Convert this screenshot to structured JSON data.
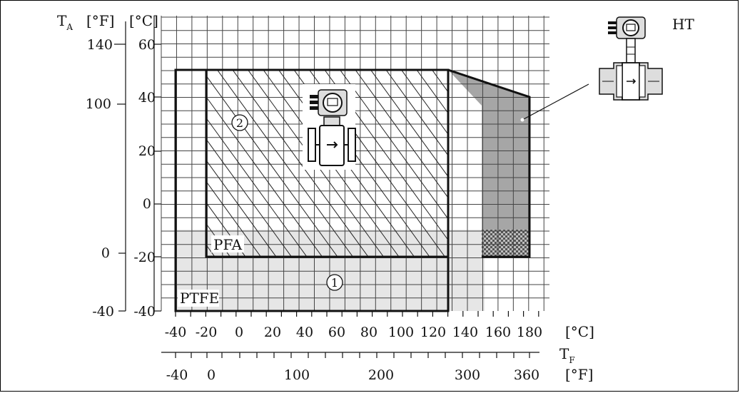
{
  "axes": {
    "ambient": {
      "symbol": "T",
      "subscript": "A",
      "unit_f": "[°F]",
      "unit_c": "[°C]",
      "ticks_c": [
        "60",
        "40",
        "20",
        "0",
        "-20",
        "-40"
      ],
      "ticks_f": [
        "140",
        "100",
        "0",
        "-40"
      ]
    },
    "fluid": {
      "symbol": "T",
      "subscript": "F",
      "unit_c": "[°C]",
      "unit_f": "[°F]",
      "ticks_c": [
        "-40",
        "-20",
        "0",
        "20",
        "40",
        "60",
        "80",
        "100",
        "120",
        "140",
        "160",
        "180"
      ],
      "ticks_f": [
        "-40",
        "0",
        "100",
        "200",
        "300",
        "360"
      ]
    }
  },
  "regions": {
    "ptfe_label": "PTFE",
    "pfa_label": "PFA",
    "marker_1": "1",
    "marker_2": "2",
    "ht_label": "HT"
  },
  "colors": {
    "grid": "#444444",
    "fill_light": "#e6e6e6",
    "fill_dark": "#a6a6a6",
    "outline": "#111111"
  }
}
